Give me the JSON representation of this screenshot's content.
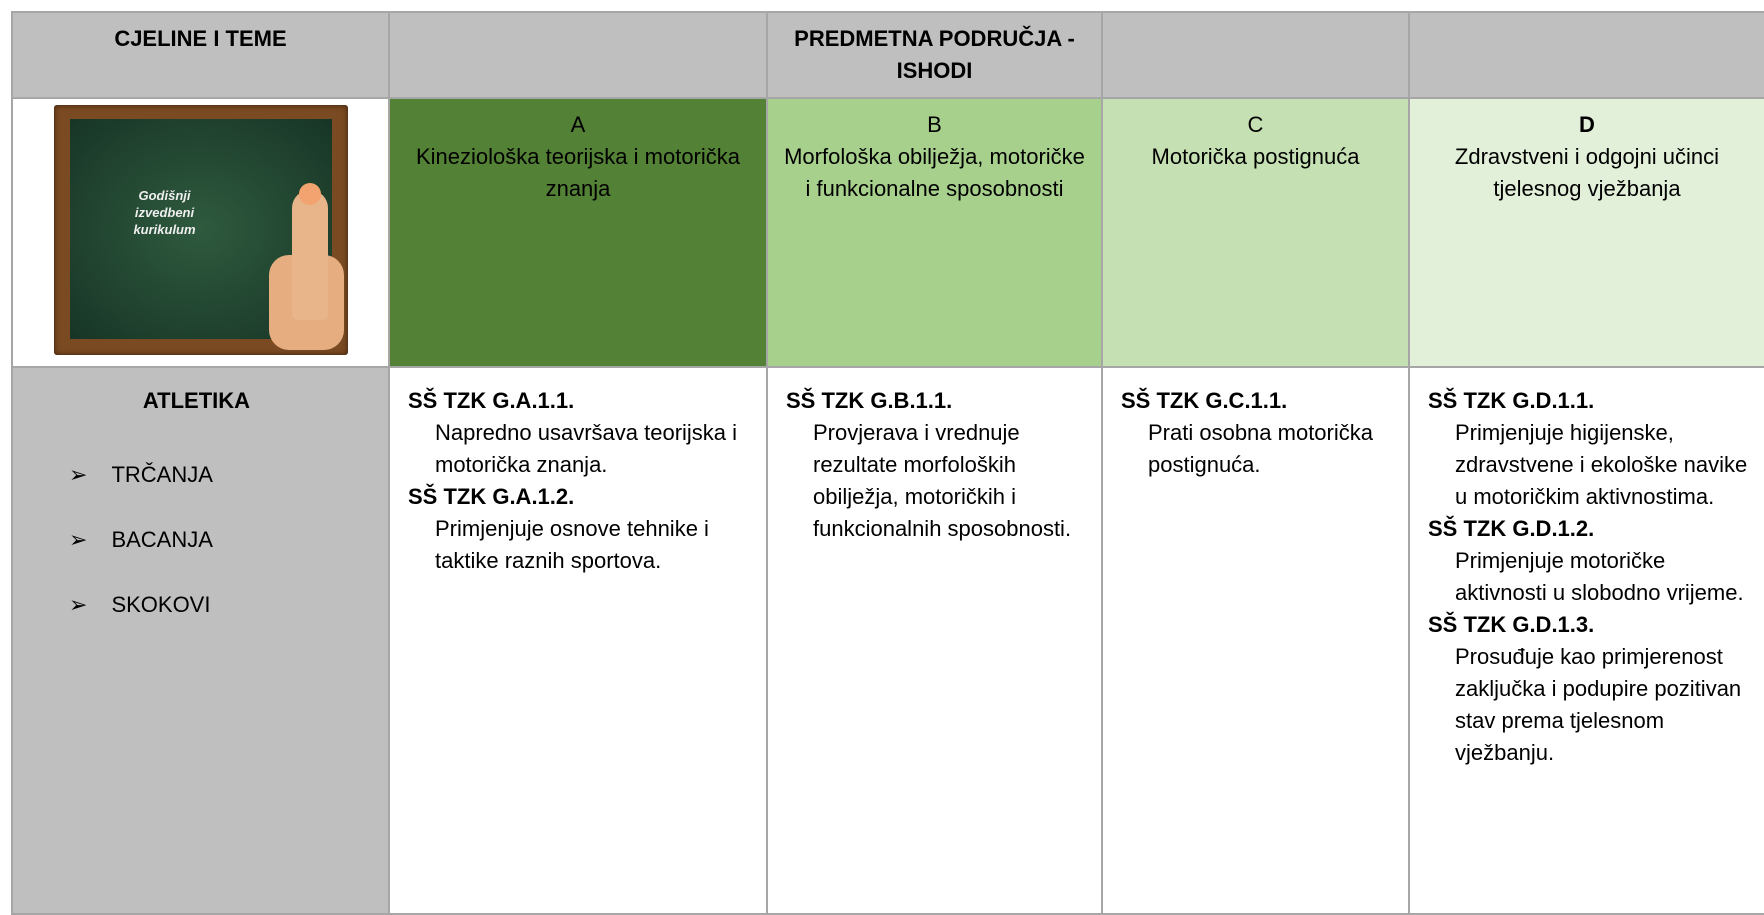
{
  "header": {
    "themes": "CJELINE I TEME",
    "areas": "PREDMETNA PODRUČJA - ISHODI"
  },
  "image": {
    "label": "Godišnji izvedbeni kurikulum"
  },
  "areas": [
    {
      "letter": "A",
      "name": "Kineziološka teorijska i motorička znanja"
    },
    {
      "letter": "B",
      "name": "Morfološka obilježja, motoričke i funkcionalne sposobnosti"
    },
    {
      "letter": "C",
      "name": "Motorička postignuća"
    },
    {
      "letter": "D",
      "name": "Zdravstveni i odgojni učinci tjelesnog vježbanja"
    }
  ],
  "unit": {
    "title": "ATLETIKA",
    "items": [
      "TRČANJA",
      "BACANJA",
      "SKOKOVI"
    ]
  },
  "outcomes": [
    [
      {
        "code": "SŠ TZK G.A.1.1.",
        "text": "Napredno usavršava teorijska i motorička znanja."
      },
      {
        "code": "SŠ TZK G.A.1.2.",
        "text": "Primjenjuje osnove tehnike i taktike raznih sportova."
      }
    ],
    [
      {
        "code": "SŠ TZK G.B.1.1.",
        "text": "Provjerava i vrednuje rezultate morfoloških obilježja, motoričkih i funkcionalnih sposobnosti."
      }
    ],
    [
      {
        "code": "SŠ TZK G.C.1.1.",
        "text": "Prati osobna motorička postignuća."
      }
    ],
    [
      {
        "code": "SŠ TZK G.D.1.1.",
        "text": "Primjenjuje higijenske, zdravstvene i ekološke navike u motoričkim aktivnostima."
      },
      {
        "code": "SŠ TZK G.D.1.2.",
        "text": "Primjenjuje motoričke aktivnosti u slobodno vrijeme."
      },
      {
        "code": "SŠ TZK G.D.1.3.",
        "text": "Prosuđuje kao primjerenost zaključka i podupire pozitivan stav prema tjelesnom vježbanju."
      }
    ]
  ]
}
